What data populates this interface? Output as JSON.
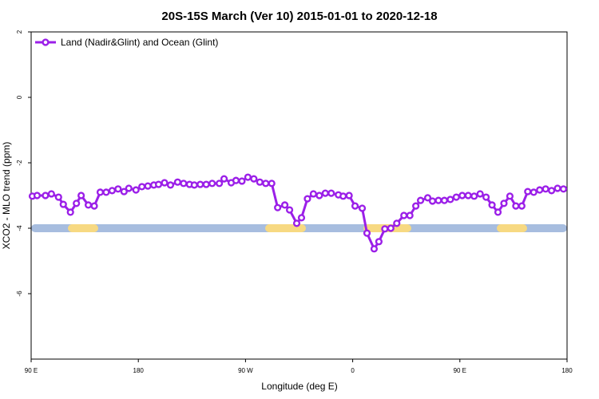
{
  "chart_data": {
    "type": "line",
    "title": "20S-15S March (Ver 10)   2015-01-01 to 2020-12-18",
    "x_label": "Longitude (deg E)",
    "y_label": "XCO2 - MLO trend (ppm)",
    "x": [
      91,
      95,
      102,
      107,
      113,
      117,
      123,
      128,
      132,
      138,
      143,
      148,
      153,
      158,
      163,
      168,
      172,
      178,
      183,
      188,
      193,
      197,
      202,
      207,
      213,
      218,
      223,
      227,
      232,
      237,
      242,
      248,
      252,
      258,
      262,
      267,
      272,
      277,
      282,
      287,
      292,
      297,
      303,
      307,
      313,
      317,
      322,
      327,
      332,
      337,
      342,
      348,
      352,
      357,
      362,
      368,
      372,
      378,
      382,
      387,
      392,
      397,
      403,
      408,
      413,
      417,
      423,
      427,
      432,
      437,
      442,
      447,
      452,
      457,
      462,
      467,
      472,
      477,
      482,
      487,
      492,
      497,
      502,
      507,
      512,
      517,
      522,
      527,
      532,
      537
    ],
    "series": [
      {
        "name": "Land (Nadir&Glint) and Ocean (Glint)",
        "color": "#9b1fe8",
        "values": [
          -3.02,
          -3.0,
          -3.0,
          -2.95,
          -3.05,
          -3.27,
          -3.51,
          -3.24,
          -3.0,
          -3.29,
          -3.32,
          -2.9,
          -2.9,
          -2.85,
          -2.8,
          -2.88,
          -2.78,
          -2.83,
          -2.73,
          -2.71,
          -2.68,
          -2.66,
          -2.61,
          -2.68,
          -2.59,
          -2.63,
          -2.66,
          -2.68,
          -2.66,
          -2.66,
          -2.63,
          -2.63,
          -2.49,
          -2.61,
          -2.54,
          -2.56,
          -2.44,
          -2.49,
          -2.59,
          -2.63,
          -2.63,
          -3.37,
          -3.29,
          -3.44,
          -3.85,
          -3.68,
          -3.1,
          -2.95,
          -3.0,
          -2.93,
          -2.93,
          -2.98,
          -3.02,
          -3.0,
          -3.32,
          -3.39,
          -4.15,
          -4.63,
          -4.41,
          -4.02,
          -4.0,
          -3.85,
          -3.61,
          -3.61,
          -3.32,
          -3.15,
          -3.07,
          -3.17,
          -3.15,
          -3.15,
          -3.12,
          -3.05,
          -3.0,
          -3.0,
          -3.02,
          -2.95,
          -3.05,
          -3.29,
          -3.51,
          -3.24,
          -3.02,
          -3.32,
          -3.32,
          -2.88,
          -2.9,
          -2.83,
          -2.8,
          -2.85,
          -2.78,
          -2.8
        ]
      }
    ],
    "xlim": [
      90,
      540
    ],
    "xticks": [
      {
        "value": 90,
        "label": "90 E"
      },
      180,
      {
        "value": 270,
        "label": "90 W"
      },
      {
        "value": 360,
        "label": "0"
      },
      {
        "value": 450,
        "label": "90 E"
      },
      {
        "value": 540,
        "label": "180"
      }
    ],
    "ylim": [
      -8,
      2
    ],
    "yticks": [
      2,
      0,
      -2,
      -4,
      -6
    ],
    "legend": "top-left"
  }
}
